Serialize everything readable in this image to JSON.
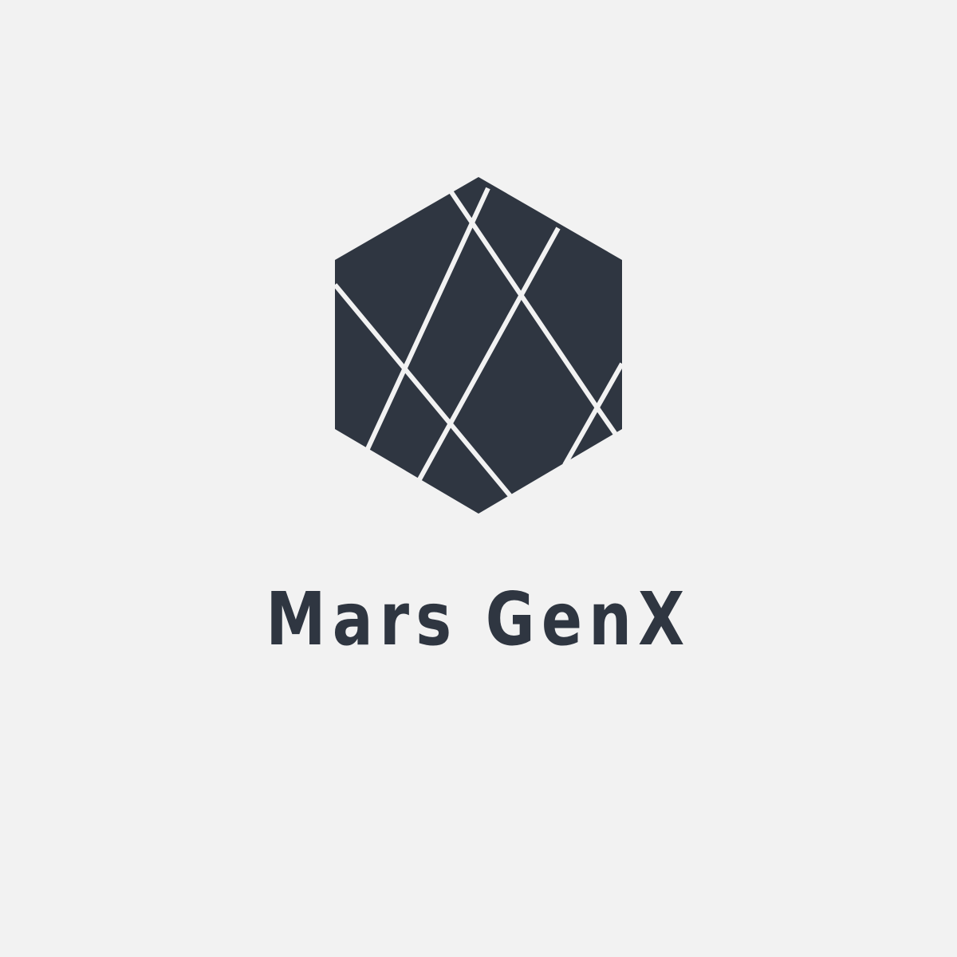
{
  "brand": {
    "name": "Mars GenX"
  },
  "colors": {
    "background": "#f2f2f2",
    "mark": "#2f3641",
    "text": "#2f3641",
    "cut_lines": "#f2f2f2"
  },
  "icons": {
    "mark": "faceted-hexagon-logo-icon"
  }
}
